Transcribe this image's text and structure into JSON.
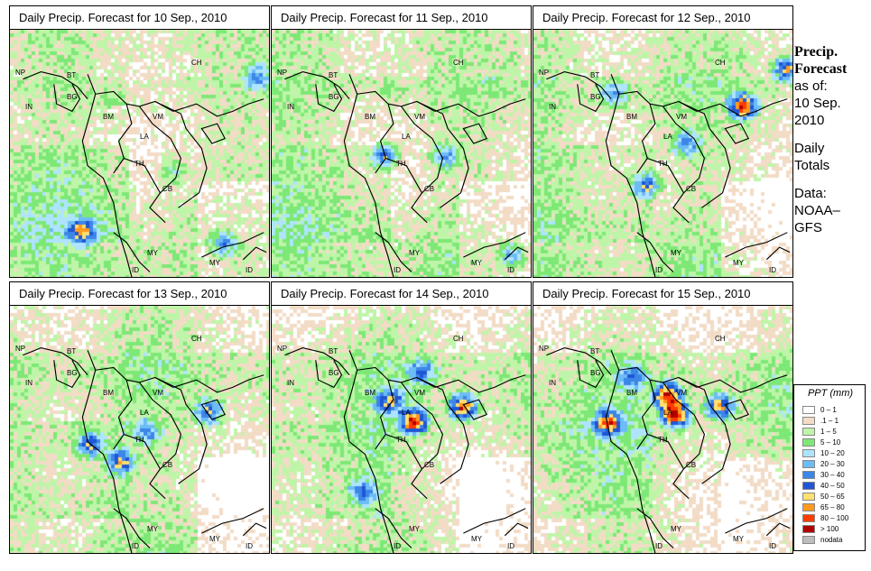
{
  "panels": [
    {
      "title": "Daily Precip. Forecast for  10 Sep., 2010",
      "hotspots": [
        [
          0.4,
          0.26,
          1
        ],
        [
          0.62,
          0.56,
          2
        ],
        [
          0.82,
          0.85,
          3
        ],
        [
          0.27,
          0.8,
          4
        ],
        [
          0.95,
          0.18,
          3
        ]
      ]
    },
    {
      "title": "Daily Precip. Forecast for  11 Sep., 2010",
      "hotspots": [
        [
          0.43,
          0.5,
          4
        ],
        [
          0.66,
          0.5,
          3
        ],
        [
          0.45,
          0.24,
          1
        ],
        [
          0.92,
          0.9,
          3
        ]
      ]
    },
    {
      "title": "Daily Precip. Forecast for  12 Sep., 2010",
      "hotspots": [
        [
          0.8,
          0.3,
          6
        ],
        [
          0.58,
          0.45,
          3
        ],
        [
          0.43,
          0.62,
          4
        ],
        [
          0.97,
          0.15,
          5
        ],
        [
          0.3,
          0.25,
          3
        ]
      ]
    },
    {
      "title": "Daily Precip. Forecast for  13 Sep., 2010",
      "hotspots": [
        [
          0.3,
          0.55,
          4
        ],
        [
          0.76,
          0.42,
          4
        ],
        [
          0.52,
          0.5,
          3
        ],
        [
          0.42,
          0.62,
          4
        ]
      ]
    },
    {
      "title": "Daily Precip. Forecast for  14 Sep., 2010",
      "hotspots": [
        [
          0.54,
          0.46,
          6
        ],
        [
          0.73,
          0.4,
          6
        ],
        [
          0.57,
          0.26,
          3
        ],
        [
          0.45,
          0.38,
          4
        ],
        [
          0.34,
          0.74,
          3
        ]
      ]
    },
    {
      "title": "Daily Precip. Forecast for  15 Sep., 2010",
      "hotspots": [
        [
          0.28,
          0.46,
          5
        ],
        [
          0.51,
          0.35,
          6
        ],
        [
          0.54,
          0.43,
          7
        ],
        [
          0.71,
          0.4,
          5
        ],
        [
          0.37,
          0.28,
          3
        ]
      ]
    }
  ],
  "labels": [
    {
      "text": "CH"
    },
    {
      "text": "NP"
    },
    {
      "text": "BT"
    },
    {
      "text": "IN"
    },
    {
      "text": "BG"
    },
    {
      "text": "BM"
    },
    {
      "text": "VM"
    },
    {
      "text": "LA"
    },
    {
      "text": "TH"
    },
    {
      "text": "CB"
    },
    {
      "text": "MY"
    },
    {
      "text": "MY"
    },
    {
      "text": "ID"
    },
    {
      "text": "ID"
    }
  ],
  "side": {
    "title_line1": "Precip.",
    "title_line2": "Forecast",
    "as_of": "as of:",
    "date_line1": "10 Sep.",
    "date_line2": "2010",
    "daily_line1": "Daily",
    "daily_line2": "Totals",
    "data_line1": "Data:",
    "data_line2": "NOAA–",
    "data_line3": "GFS"
  },
  "legend": {
    "title": "PPT (mm)",
    "items": [
      {
        "label": "0 – 1",
        "color": "#ffffff"
      },
      {
        "label": ".1 – 1",
        "color": "#f2dcc6"
      },
      {
        "label": "1 – 5",
        "color": "#bff5a8"
      },
      {
        "label": "5 – 10",
        "color": "#7ee876"
      },
      {
        "label": "10 – 20",
        "color": "#aee4ff"
      },
      {
        "label": "20 – 30",
        "color": "#6cbcf5"
      },
      {
        "label": "30 – 40",
        "color": "#3c86e8"
      },
      {
        "label": "40 – 50",
        "color": "#1f56d4"
      },
      {
        "label": "50 – 65",
        "color": "#ffe070"
      },
      {
        "label": "65 – 80",
        "color": "#ff9a1e"
      },
      {
        "label": "80 – 100",
        "color": "#ff3c00"
      },
      {
        "label": "> 100",
        "color": "#b00000"
      },
      {
        "label": "nodata",
        "color": "#bdbdbd"
      }
    ]
  }
}
